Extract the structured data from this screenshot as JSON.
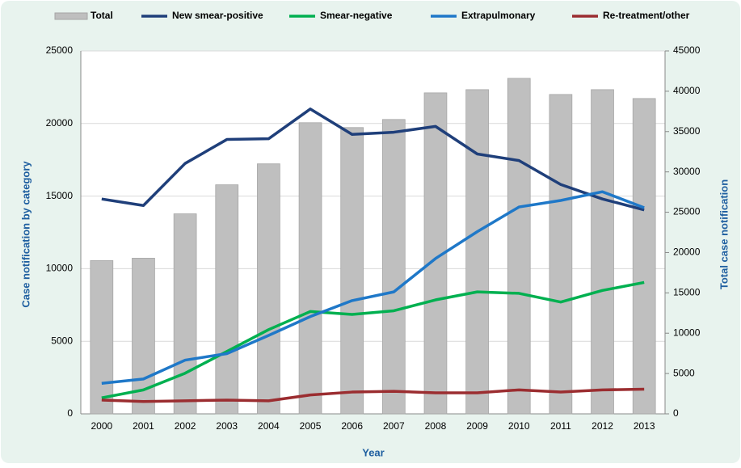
{
  "chart_data": {
    "type": "combo",
    "xlabel": "Year",
    "ylabel": "Case notification by category",
    "y2label": "Total  case notification",
    "categories": [
      "2000",
      "2001",
      "2002",
      "2003",
      "2004",
      "2005",
      "2006",
      "2007",
      "2008",
      "2009",
      "2010",
      "2011",
      "2012",
      "2013"
    ],
    "series": [
      {
        "name": "Total",
        "type": "bar",
        "axis": "y2",
        "color": "#bfbfbf",
        "values": [
          19000,
          19300,
          24800,
          28400,
          31000,
          36100,
          35500,
          36500,
          39800,
          40200,
          41600,
          39600,
          40200,
          39100
        ]
      },
      {
        "name": "New smear-positive",
        "type": "line",
        "color": "#1f3f7a",
        "values": [
          14800,
          14350,
          17250,
          18900,
          18950,
          21000,
          19250,
          19400,
          19800,
          17900,
          17450,
          15800,
          14800,
          14050
        ]
      },
      {
        "name": "Smear-negative",
        "type": "line",
        "color": "#00b050",
        "values": [
          1100,
          1650,
          2800,
          4300,
          5800,
          7050,
          6850,
          7100,
          7850,
          8400,
          8300,
          7700,
          8500,
          9050
        ]
      },
      {
        "name": "Extrapulmonary",
        "type": "line",
        "color": "#1f78c8",
        "values": [
          2100,
          2400,
          3700,
          4150,
          5400,
          6700,
          7800,
          8400,
          10700,
          12550,
          14250,
          14700,
          15300,
          14200
        ]
      },
      {
        "name": "Re-treatment/other",
        "type": "line",
        "color": "#9b2d30",
        "values": [
          950,
          850,
          900,
          950,
          900,
          1300,
          1500,
          1550,
          1450,
          1450,
          1650,
          1500,
          1650,
          1700
        ]
      }
    ],
    "ylim": [
      0,
      25000
    ],
    "yticks": [
      0,
      5000,
      10000,
      15000,
      20000,
      25000
    ],
    "y2lim": [
      0,
      45000
    ],
    "y2ticks": [
      0,
      5000,
      10000,
      15000,
      20000,
      25000,
      30000,
      35000,
      40000,
      45000
    ],
    "grid": true,
    "legend": "top"
  }
}
